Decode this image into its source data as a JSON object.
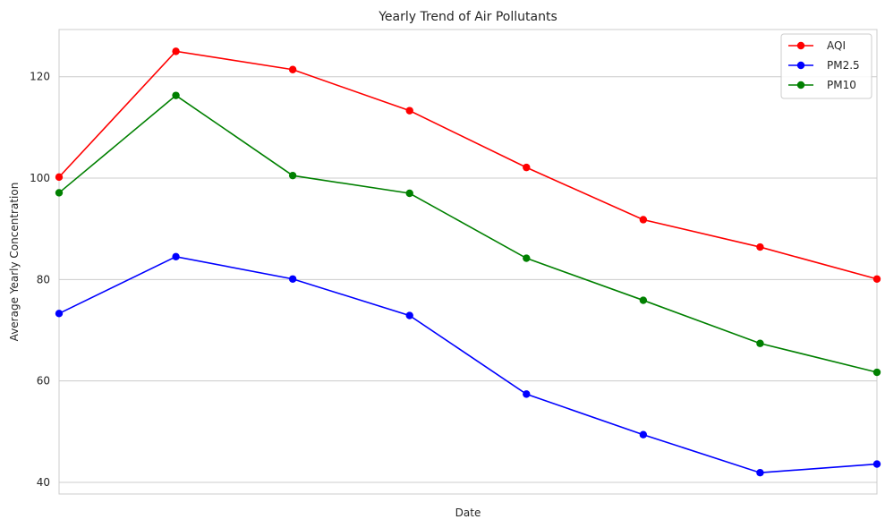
{
  "chart_data": {
    "type": "line",
    "title": "Yearly Trend of Air Pollutants",
    "xlabel": "Date",
    "ylabel": "Average Yearly Concentration",
    "x": [
      0,
      1,
      2,
      3,
      4,
      5,
      6,
      7
    ],
    "xlim": [
      0,
      7
    ],
    "ylim": [
      37.7,
      129.3
    ],
    "yticks": [
      40,
      60,
      80,
      100,
      120
    ],
    "grid": "horizontal",
    "legend_position": "top-right",
    "series": [
      {
        "name": "AQI",
        "color": "#ff0000",
        "marker": "circle",
        "values": [
          100.2,
          125.0,
          121.4,
          113.3,
          102.1,
          91.8,
          86.4,
          80.1
        ]
      },
      {
        "name": "PM2.5",
        "color": "#0000ff",
        "marker": "circle",
        "values": [
          73.3,
          84.5,
          80.1,
          72.9,
          57.4,
          49.4,
          41.9,
          43.6
        ]
      },
      {
        "name": "PM10",
        "color": "#008000",
        "marker": "circle",
        "values": [
          97.1,
          116.3,
          100.5,
          97.0,
          84.2,
          75.9,
          67.4,
          61.7
        ]
      }
    ]
  }
}
